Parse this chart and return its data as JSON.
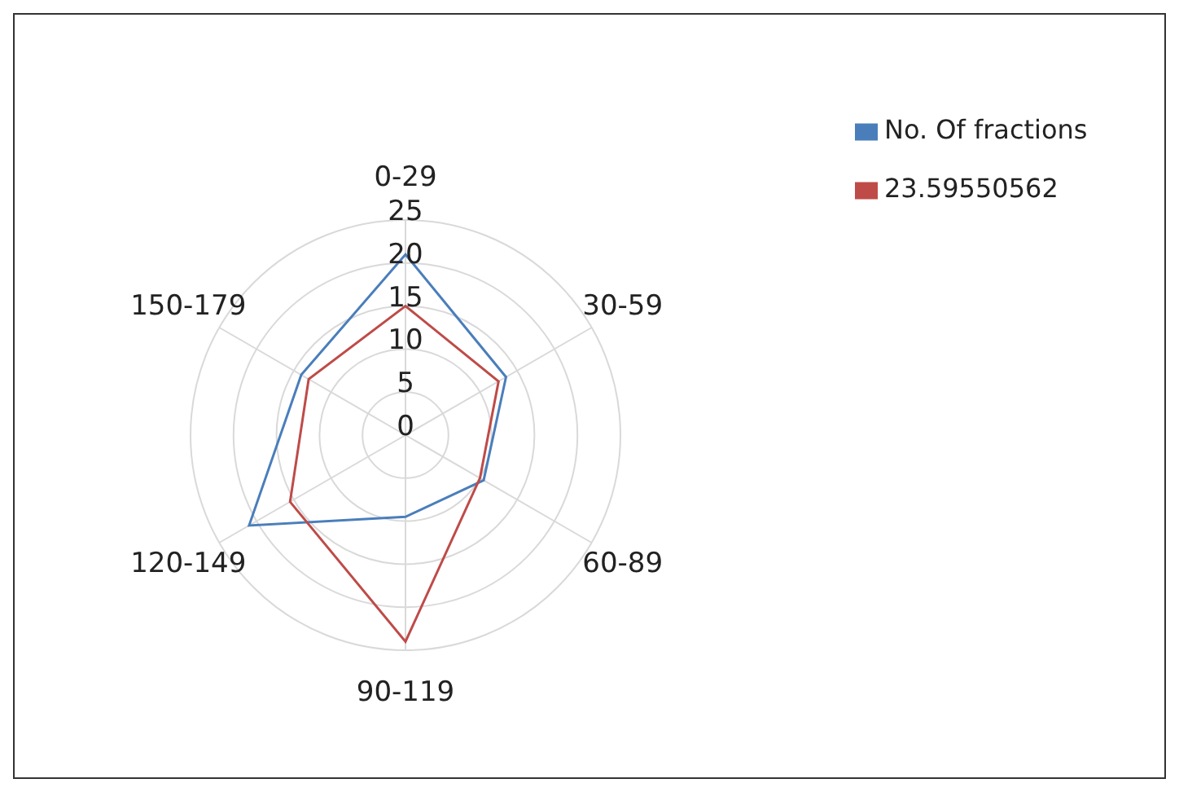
{
  "chart_data": {
    "type": "radar",
    "categories": [
      "0-29",
      "30-59",
      "60-89",
      "90-119",
      "120-149",
      "150-179"
    ],
    "series": [
      {
        "name": "No. Of fractions",
        "color": "#4a7ebb",
        "values": [
          21,
          13.5,
          10.5,
          9.5,
          21,
          14
        ]
      },
      {
        "name": "23.59550562",
        "color": "#be4b48",
        "values": [
          15,
          12.5,
          10,
          24,
          15.5,
          13
        ]
      }
    ],
    "ylim": [
      0,
      25
    ],
    "yticks": [
      0,
      5,
      10,
      15,
      20,
      25
    ],
    "grid": true,
    "legend": "top right"
  }
}
